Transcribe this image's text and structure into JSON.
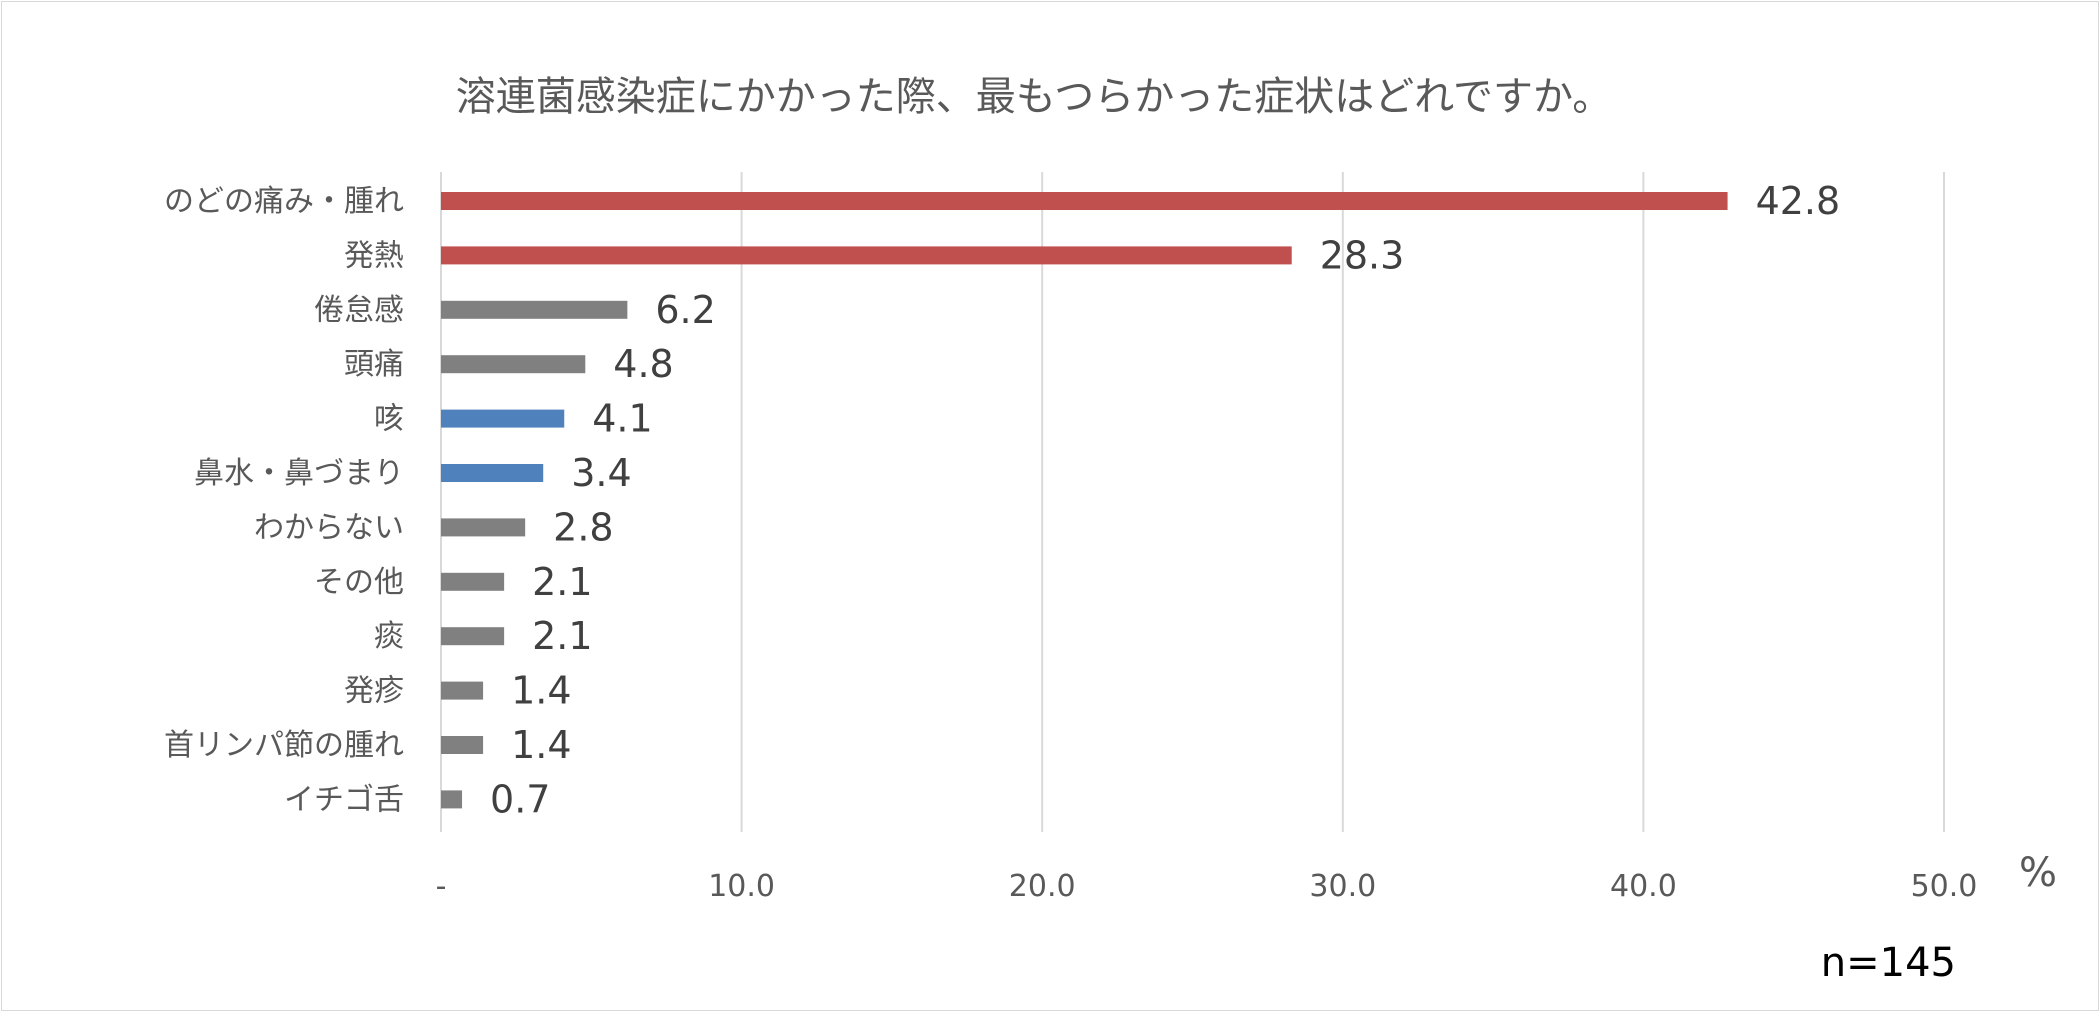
{
  "chart_data": {
    "type": "bar",
    "orientation": "horizontal",
    "title": "溶連菌感染症にかかった際、最もつらかった症状はどれですか。",
    "categories": [
      "のどの痛み・腫れ",
      "発熱",
      "倦怠感",
      "頭痛",
      "咳",
      "鼻水・鼻づまり",
      "わからない",
      "その他",
      "痰",
      "発疹",
      "首リンパ節の腫れ",
      "イチゴ舌"
    ],
    "values": [
      42.8,
      28.3,
      6.2,
      4.8,
      4.1,
      3.4,
      2.8,
      2.1,
      2.1,
      1.4,
      1.4,
      0.7
    ],
    "value_labels": [
      "42.8",
      "28.3",
      "6.2",
      "4.8",
      "4.1",
      "3.4",
      "2.8",
      "2.1",
      "2.1",
      "1.4",
      "1.4",
      "0.7"
    ],
    "bar_colors": [
      "#c0504d",
      "#c0504d",
      "#808080",
      "#808080",
      "#4f81bd",
      "#4f81bd",
      "#808080",
      "#808080",
      "#808080",
      "#808080",
      "#808080",
      "#808080"
    ],
    "xlim": [
      0,
      50
    ],
    "x_ticks": [
      0,
      10,
      20,
      30,
      40,
      50
    ],
    "x_tick_labels": [
      "-",
      "10.0",
      "20.0",
      "30.0",
      "40.0",
      "50.0"
    ],
    "x_unit": "%",
    "grid": true,
    "legend": "none",
    "annotation": "n=145"
  }
}
